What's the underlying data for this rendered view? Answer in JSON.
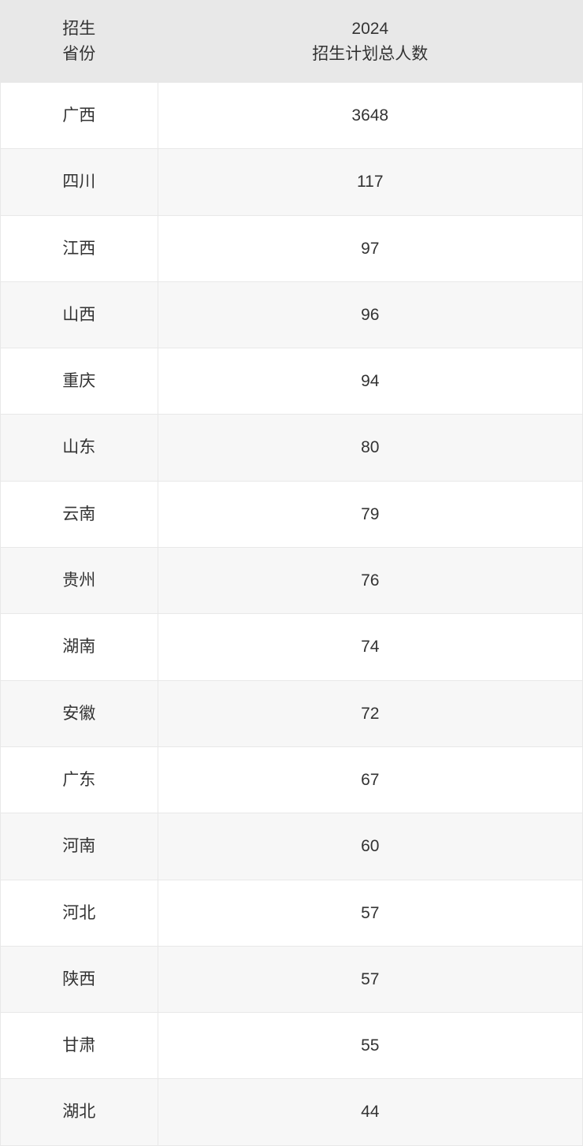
{
  "table": {
    "header": {
      "col1_line1": "招生",
      "col1_line2": "省份",
      "col2_line1": "2024",
      "col2_line2": "招生计划总人数"
    },
    "rows": [
      {
        "province": "广西",
        "count": "3648"
      },
      {
        "province": "四川",
        "count": "117"
      },
      {
        "province": "江西",
        "count": "97"
      },
      {
        "province": "山西",
        "count": "96"
      },
      {
        "province": "重庆",
        "count": "94"
      },
      {
        "province": "山东",
        "count": "80"
      },
      {
        "province": "云南",
        "count": "79"
      },
      {
        "province": "贵州",
        "count": "76"
      },
      {
        "province": "湖南",
        "count": "74"
      },
      {
        "province": "安徽",
        "count": "72"
      },
      {
        "province": "广东",
        "count": "67"
      },
      {
        "province": "河南",
        "count": "60"
      },
      {
        "province": "河北",
        "count": "57"
      },
      {
        "province": "陕西",
        "count": "57"
      },
      {
        "province": "甘肃",
        "count": "55"
      },
      {
        "province": "湖北",
        "count": "44"
      }
    ],
    "styles": {
      "header_bg": "#e8e8e8",
      "row_odd_bg": "#ffffff",
      "row_even_bg": "#f7f7f7",
      "border_color": "#e8e8e8",
      "text_color": "#333333",
      "font_size_header": 21,
      "font_size_cell": 21,
      "col1_width_pct": 27,
      "col2_width_pct": 73
    }
  }
}
